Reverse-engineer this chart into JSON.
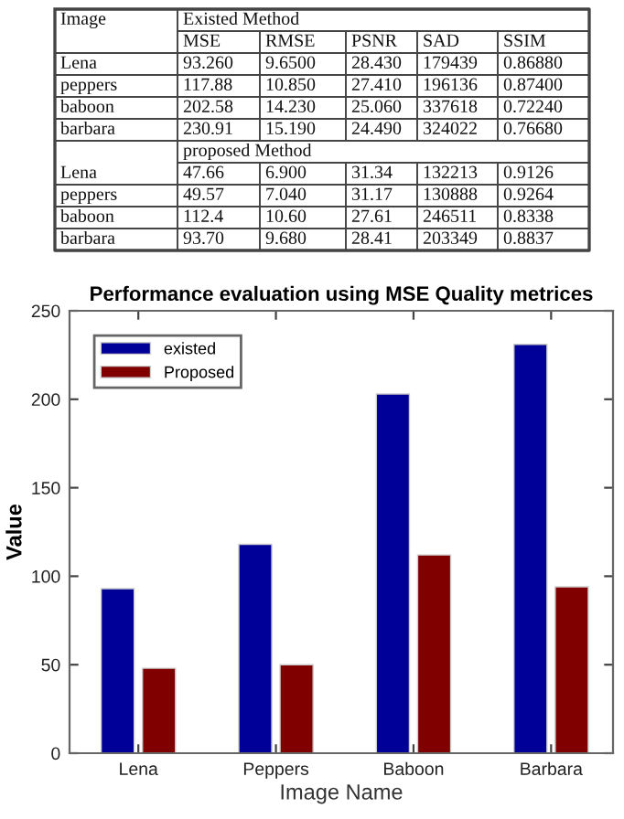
{
  "chart_data": [
    {
      "type": "other",
      "annotations": [
        "Image",
        "Existed Method",
        "MSE",
        "RMSE",
        "PSNR",
        "SAD",
        "SSIM",
        "Lena",
        "93.260",
        "9.6500",
        "28.430",
        "179439",
        "0.86880",
        "peppers",
        "117.88",
        "10.850",
        "27.410",
        "196136",
        "0.87400",
        "baboon",
        "202.58",
        "14.230",
        "25.060",
        "337618",
        "0.72240",
        "barbara",
        "230.91",
        "15.190",
        "24.490",
        "324022",
        "0.76680",
        "proposed Method",
        "Lena",
        "47.66",
        "6.900",
        "31.34",
        "132213",
        "0.9126",
        "peppers",
        "49.57",
        "7.040",
        "31.17",
        "130888",
        "0.9264",
        "baboon",
        "112.4",
        "10.60",
        "27.61",
        "246511",
        "0.8338",
        "barbara",
        "93.70",
        "9.680",
        "28.41",
        "203349",
        "0.8837"
      ]
    },
    {
      "type": "bar",
      "title": "Performance evaluation using MSE Quality metrices",
      "xlabel": "Image Name",
      "ylabel": "Value",
      "categories": [
        "Lena",
        "Peppers",
        "Baboon",
        "Barbara"
      ],
      "series": [
        {
          "name": "existed",
          "color": "#000099",
          "values": [
            93,
            118,
            203,
            231
          ]
        },
        {
          "name": "Proposed",
          "color": "#800000",
          "values": [
            48,
            50,
            112,
            94
          ]
        }
      ],
      "ylim": [
        0,
        250
      ],
      "yticks": [
        0,
        50,
        100,
        150,
        200,
        250
      ],
      "grid": false,
      "legend": "top left"
    }
  ]
}
